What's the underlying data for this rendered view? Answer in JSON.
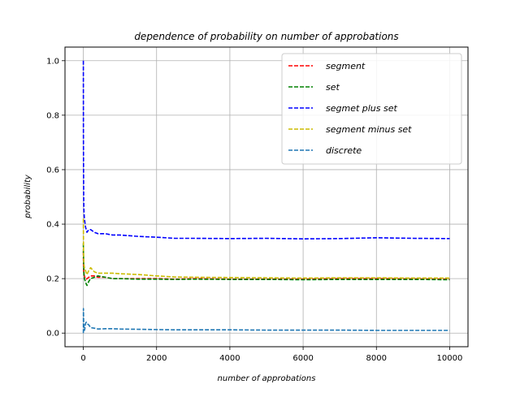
{
  "chart_data": {
    "type": "line",
    "title": "dependence of probability on number of approbations",
    "xlabel": "number of approbations",
    "ylabel": "probability",
    "xlim": [
      -500,
      10500
    ],
    "ylim": [
      -0.05,
      1.05
    ],
    "xticks": [
      0,
      2000,
      4000,
      6000,
      8000,
      10000
    ],
    "yticks": [
      0.0,
      0.2,
      0.4,
      0.6,
      0.8,
      1.0
    ],
    "xtick_labels": [
      "0",
      "2000",
      "4000",
      "6000",
      "8000",
      "10000"
    ],
    "ytick_labels": [
      "0.0",
      "0.2",
      "0.4",
      "0.6",
      "0.8",
      "1.0"
    ],
    "grid": true,
    "legend_position": "top-right",
    "line_style": "dashed",
    "series": [
      {
        "name": "segment",
        "color": "#ff0000",
        "x": [
          1,
          3,
          6,
          10,
          15,
          20,
          30,
          40,
          60,
          80,
          100,
          150,
          200,
          300,
          400,
          600,
          800,
          1000,
          1500,
          2000,
          2500,
          3000,
          4000,
          5000,
          6000,
          7000,
          8000,
          9000,
          10000
        ],
        "y": [
          0.3,
          0.26,
          0.24,
          0.23,
          0.22,
          0.215,
          0.21,
          0.205,
          0.2,
          0.198,
          0.2,
          0.205,
          0.21,
          0.21,
          0.205,
          0.205,
          0.2,
          0.2,
          0.2,
          0.2,
          0.198,
          0.2,
          0.198,
          0.198,
          0.198,
          0.2,
          0.2,
          0.199,
          0.198
        ]
      },
      {
        "name": "set",
        "color": "#008000",
        "x": [
          1,
          3,
          6,
          10,
          15,
          20,
          30,
          40,
          60,
          80,
          100,
          150,
          200,
          300,
          400,
          600,
          800,
          1000,
          1500,
          2000,
          2500,
          3000,
          4000,
          5000,
          6000,
          7000,
          8000,
          9000,
          10000
        ],
        "y": [
          0.33,
          0.3,
          0.28,
          0.25,
          0.23,
          0.21,
          0.2,
          0.195,
          0.19,
          0.18,
          0.175,
          0.19,
          0.2,
          0.205,
          0.21,
          0.205,
          0.2,
          0.2,
          0.198,
          0.198,
          0.197,
          0.198,
          0.197,
          0.197,
          0.196,
          0.197,
          0.197,
          0.197,
          0.196
        ]
      },
      {
        "name": "segmet plus set",
        "color": "#0000ff",
        "x": [
          1,
          3,
          6,
          10,
          15,
          20,
          30,
          40,
          60,
          80,
          100,
          150,
          200,
          300,
          400,
          600,
          800,
          1000,
          1500,
          2000,
          2500,
          3000,
          4000,
          5000,
          6000,
          7000,
          8000,
          9000,
          10000
        ],
        "y": [
          1.0,
          0.72,
          0.6,
          0.5,
          0.46,
          0.44,
          0.42,
          0.41,
          0.39,
          0.38,
          0.37,
          0.38,
          0.38,
          0.37,
          0.365,
          0.365,
          0.36,
          0.36,
          0.355,
          0.352,
          0.348,
          0.348,
          0.347,
          0.348,
          0.346,
          0.347,
          0.35,
          0.348,
          0.347
        ]
      },
      {
        "name": "segment minus set",
        "color": "#ccbb00",
        "x": [
          1,
          3,
          6,
          10,
          15,
          20,
          30,
          40,
          60,
          80,
          100,
          150,
          200,
          300,
          400,
          600,
          800,
          1000,
          1500,
          2000,
          2500,
          3000,
          4000,
          5000,
          6000,
          7000,
          8000,
          9000,
          10000
        ],
        "y": [
          0.42,
          0.36,
          0.3,
          0.28,
          0.26,
          0.25,
          0.24,
          0.235,
          0.23,
          0.22,
          0.215,
          0.23,
          0.24,
          0.225,
          0.22,
          0.22,
          0.22,
          0.218,
          0.215,
          0.21,
          0.206,
          0.205,
          0.204,
          0.203,
          0.202,
          0.203,
          0.203,
          0.202,
          0.202
        ]
      },
      {
        "name": "discrete",
        "color": "#1f77b4",
        "x": [
          1,
          3,
          6,
          10,
          15,
          20,
          30,
          40,
          60,
          80,
          100,
          150,
          200,
          300,
          400,
          600,
          800,
          1000,
          1500,
          2000,
          2500,
          3000,
          4000,
          5000,
          6000,
          7000,
          8000,
          9000,
          10000
        ],
        "y": [
          0.0,
          0.09,
          0.06,
          0.04,
          0.03,
          0.02,
          0.01,
          0.015,
          0.035,
          0.04,
          0.035,
          0.03,
          0.02,
          0.018,
          0.015,
          0.016,
          0.016,
          0.015,
          0.014,
          0.013,
          0.012,
          0.012,
          0.012,
          0.011,
          0.011,
          0.011,
          0.01,
          0.01,
          0.01
        ]
      }
    ]
  }
}
